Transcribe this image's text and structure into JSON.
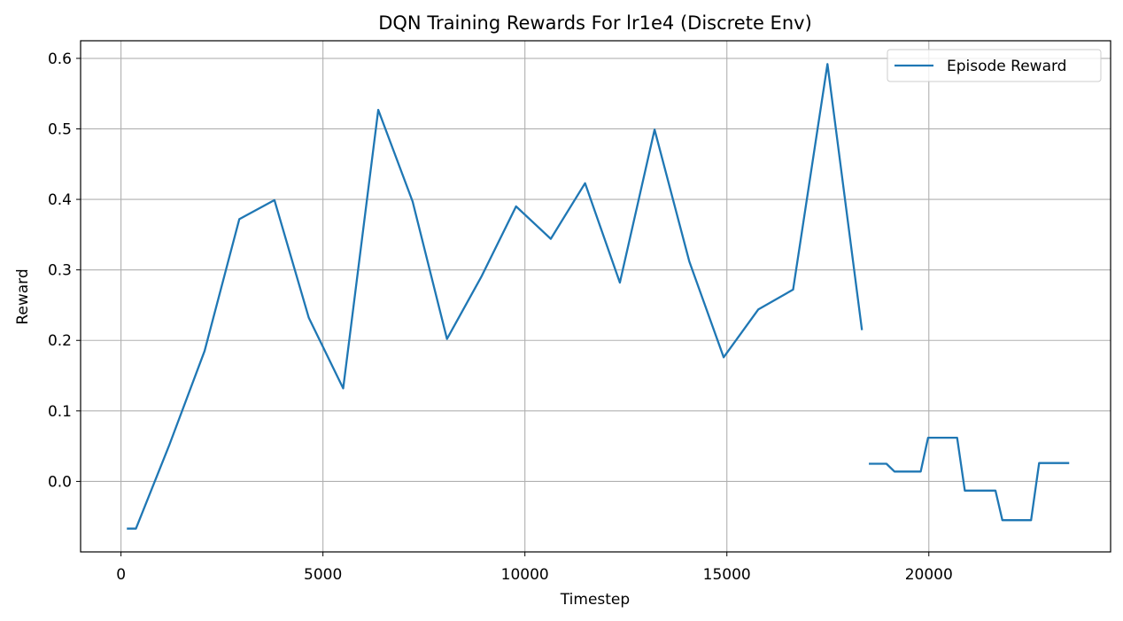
{
  "chart_data": {
    "type": "line",
    "title": "DQN Training Rewards For lr1e4 (Discrete Env)",
    "xlabel": "Timestep",
    "ylabel": "Reward",
    "xlim": [
      -1000,
      24500
    ],
    "ylim": [
      -0.1,
      0.625
    ],
    "xticks": [
      0,
      5000,
      10000,
      15000,
      20000
    ],
    "yticks": [
      0.0,
      0.1,
      0.2,
      0.3,
      0.4,
      0.5,
      0.6
    ],
    "ytick_labels": [
      "0.0",
      "0.1",
      "0.2",
      "0.3",
      "0.4",
      "0.5",
      "0.6"
    ],
    "grid": true,
    "legend_position": "top-right",
    "line_color": "#1f77b4",
    "series": [
      {
        "name": "Episode Reward",
        "segments": [
          {
            "x": [
              170,
              370,
              1200,
              2070,
              2930,
              3800,
              4650,
              5500,
              6370,
              7220,
              8070,
              8920,
              9780,
              10640,
              11490,
              12350,
              13210,
              14070,
              14920,
              15780,
              16640,
              17490,
              18340
            ],
            "y": [
              -0.067,
              -0.067,
              0.052,
              0.185,
              0.372,
              0.399,
              0.232,
              0.132,
              0.527,
              0.397,
              0.202,
              0.29,
              0.39,
              0.344,
              0.423,
              0.282,
              0.499,
              0.312,
              0.176,
              0.244,
              0.272,
              0.592,
              0.216
            ]
          },
          {
            "x": [
              18540,
              18950,
              19150,
              19800,
              19980,
              20700,
              20890,
              21650,
              21820,
              22530,
              22730,
              23450
            ],
            "y": [
              0.025,
              0.025,
              0.014,
              0.014,
              0.062,
              0.062,
              -0.013,
              -0.013,
              -0.055,
              -0.055,
              0.026,
              0.026
            ]
          }
        ]
      }
    ]
  }
}
